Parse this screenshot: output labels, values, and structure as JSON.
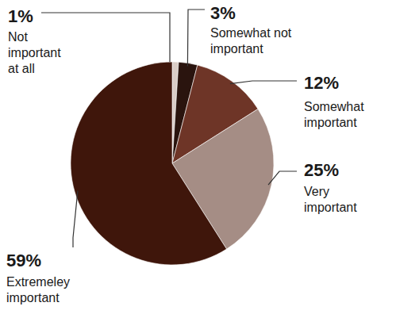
{
  "chart_data": {
    "type": "pie",
    "categories": [
      "Not important at all",
      "Somewhat not important",
      "Somewhat important",
      "Very important",
      "Extremeley important"
    ],
    "values": [
      1,
      3,
      12,
      25,
      59
    ],
    "value_labels": [
      "1%",
      "3%",
      "12%",
      "25%",
      "59%"
    ],
    "colors": [
      "#d9ccc6",
      "#2a140e",
      "#6e3527",
      "#a58d85",
      "#3f160b"
    ],
    "data_labels": true
  }
}
